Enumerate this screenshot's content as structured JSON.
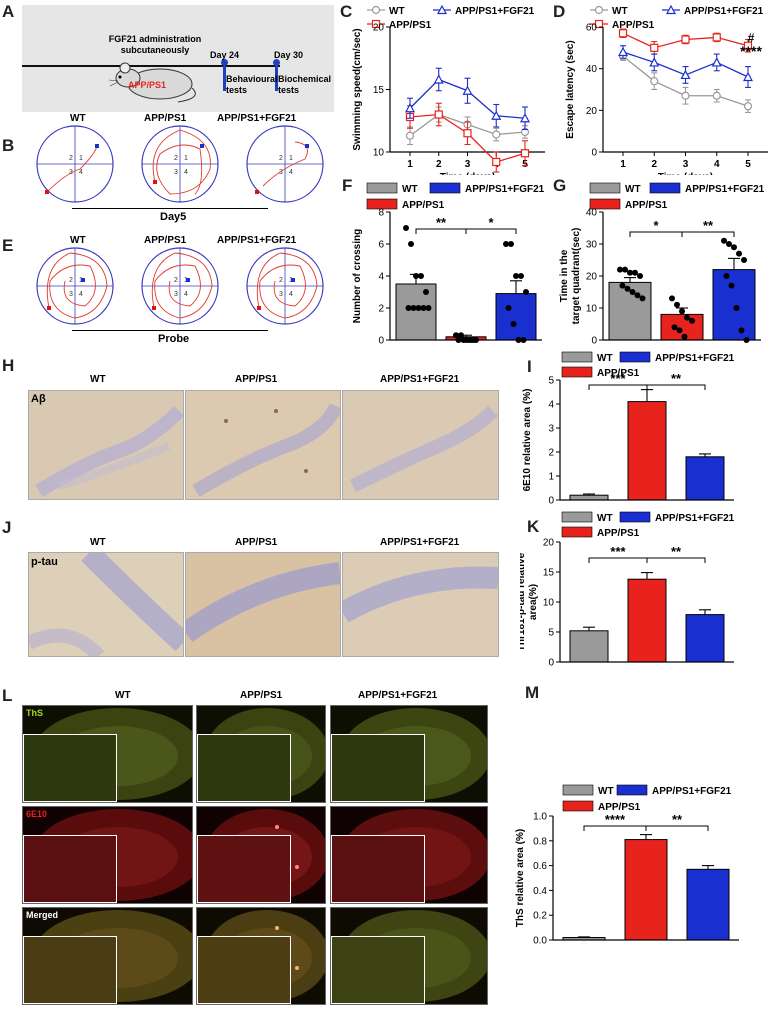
{
  "panel_letters": [
    "A",
    "B",
    "C",
    "D",
    "E",
    "F",
    "G",
    "H",
    "I",
    "J",
    "K",
    "L",
    "M"
  ],
  "groups": {
    "wt": "WT",
    "app": "APP/PS1",
    "fgf": "APP/PS1+FGF21"
  },
  "colors": {
    "wt": "#9a9a9a",
    "app": "#e8231e",
    "fgf": "#1a2fcf",
    "timeline": "#1f3fbf"
  },
  "timeline": {
    "title_l1": "FGF21 administration",
    "title_l2": "subcutaneously",
    "day24": "Day 24",
    "day30": "Day 30",
    "behav_l1": "Behavioural",
    "behav_l2": "tests",
    "bio_l1": "Biochemical",
    "bio_l2": "tests",
    "mouse_label": "APP/PS1"
  },
  "maze": {
    "day_label": "Day5",
    "probe_label": "Probe",
    "quadrants": [
      "2",
      "1",
      "3",
      "4"
    ]
  },
  "markers": {
    "star2": "**",
    "star1": "*",
    "star3": "***",
    "star4": "****",
    "hash": "#"
  },
  "histo": {
    "abeta_label": "Aβ",
    "ptau_label": "p-tau"
  },
  "fluo": {
    "ths": "ThS",
    "e610": "6E10",
    "merged": "Merged"
  },
  "chart_data": [
    {
      "panel": "C",
      "type": "line",
      "xlabel": "Time (days)",
      "ylabel": "Swimming speed(cm/sec)",
      "x": [
        1,
        2,
        3,
        4,
        5
      ],
      "ylim": [
        10,
        20
      ],
      "yticks": [
        10,
        15,
        20
      ],
      "series": [
        {
          "name": "WT",
          "values": [
            11.3,
            13.0,
            12.2,
            11.4,
            11.6
          ],
          "err": [
            0.7,
            0.6,
            0.6,
            0.5,
            0.5
          ]
        },
        {
          "name": "APP/PS1",
          "values": [
            12.8,
            13.0,
            11.5,
            9.2,
            9.9
          ],
          "err": [
            0.9,
            0.9,
            0.9,
            0.8,
            1.0
          ]
        },
        {
          "name": "APP/PS1+FGF21",
          "values": [
            13.5,
            15.8,
            14.9,
            12.9,
            12.7
          ],
          "err": [
            0.8,
            0.9,
            1.0,
            0.9,
            0.9
          ]
        }
      ]
    },
    {
      "panel": "D",
      "type": "line",
      "xlabel": "Time (days)",
      "ylabel": "Escape latency (sec)",
      "x": [
        1,
        2,
        3,
        4,
        5
      ],
      "ylim": [
        0,
        60
      ],
      "yticks": [
        0,
        20,
        40,
        60
      ],
      "series": [
        {
          "name": "WT",
          "values": [
            46,
            34,
            27,
            27,
            22
          ],
          "err": [
            2,
            4,
            4,
            3,
            3
          ]
        },
        {
          "name": "APP/PS1",
          "values": [
            57,
            50,
            54,
            55,
            51
          ],
          "err": [
            2,
            3,
            2,
            2,
            3
          ]
        },
        {
          "name": "APP/PS1+FGF21",
          "values": [
            48,
            43,
            37,
            43,
            36
          ],
          "err": [
            3,
            4,
            4,
            4,
            5
          ]
        }
      ]
    },
    {
      "panel": "F",
      "type": "bar",
      "ylabel": "Number of crossing",
      "categories": [
        "WT",
        "APP/PS1",
        "APP/PS1+FGF21"
      ],
      "values": [
        3.5,
        0.2,
        2.9
      ],
      "err": [
        0.6,
        0.1,
        0.8
      ],
      "ylim": [
        0,
        8
      ],
      "yticks": [
        0,
        2,
        4,
        6,
        8
      ],
      "points": [
        [
          7,
          6,
          4,
          4,
          3,
          2,
          2,
          2,
          2,
          2
        ],
        [
          0.3,
          0.3,
          0,
          0,
          0,
          0,
          0,
          0,
          0
        ],
        [
          6,
          6,
          4,
          4,
          3,
          2,
          1,
          0,
          0
        ]
      ]
    },
    {
      "panel": "G",
      "type": "bar",
      "ylabel": "Time in the target quadrant(sec)",
      "categories": [
        "WT",
        "APP/PS1",
        "APP/PS1+FGF21"
      ],
      "values": [
        18,
        8,
        22
      ],
      "err": [
        1.5,
        2,
        3.5
      ],
      "ylim": [
        0,
        40
      ],
      "yticks": [
        0,
        10,
        20,
        30,
        40
      ],
      "points": [
        [
          22,
          22,
          21,
          21,
          20,
          17,
          16,
          15,
          14,
          13
        ],
        [
          13,
          11,
          9,
          7,
          6,
          4,
          3,
          1
        ],
        [
          31,
          30,
          29,
          27,
          25,
          20,
          17,
          10,
          3,
          0
        ]
      ]
    },
    {
      "panel": "I",
      "type": "bar",
      "ylabel": "6E10 relative area (%)",
      "categories": [
        "WT",
        "APP/PS1",
        "APP/PS1+FGF21"
      ],
      "values": [
        0.2,
        4.1,
        1.8
      ],
      "err": [
        0.05,
        0.5,
        0.12
      ],
      "ylim": [
        0,
        5
      ],
      "yticks": [
        0,
        1,
        2,
        3,
        4,
        5
      ]
    },
    {
      "panel": "K",
      "type": "bar",
      "ylabel": "Thr181-p-tau relative area(%)",
      "categories": [
        "WT",
        "APP/PS1",
        "APP/PS1+FGF21"
      ],
      "values": [
        5.2,
        13.8,
        7.9
      ],
      "err": [
        0.6,
        1.1,
        0.8
      ],
      "ylim": [
        0,
        20
      ],
      "yticks": [
        0,
        5,
        10,
        15,
        20
      ]
    },
    {
      "panel": "M",
      "type": "bar",
      "ylabel": "ThS relative area (%)",
      "categories": [
        "WT",
        "APP/PS1",
        "APP/PS1+FGF21"
      ],
      "values": [
        0.02,
        0.81,
        0.57
      ],
      "err": [
        0.005,
        0.04,
        0.03
      ],
      "ylim": [
        0,
        1.0
      ],
      "yticks": [
        0.0,
        0.2,
        0.4,
        0.6,
        0.8,
        1.0
      ]
    }
  ]
}
